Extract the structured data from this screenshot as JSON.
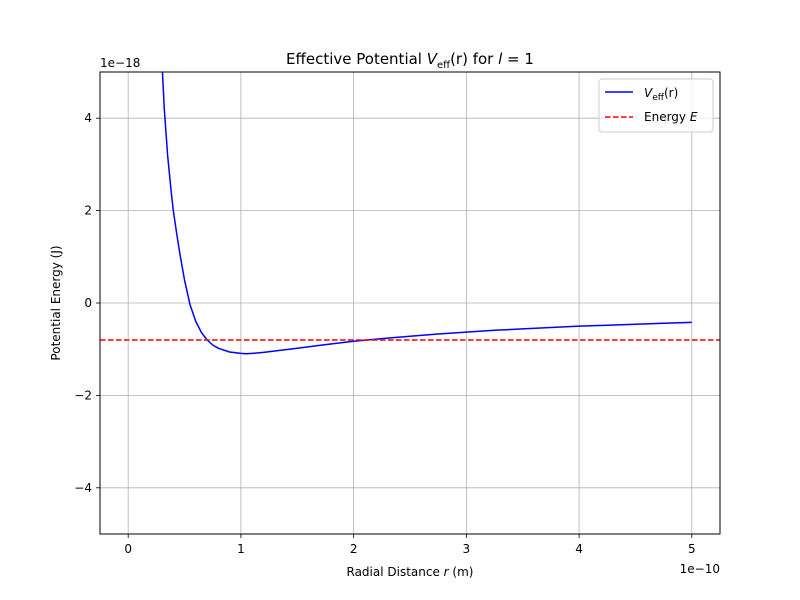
{
  "chart_data": {
    "type": "line",
    "title": "Effective Potential V_eff(r) for l = 1",
    "title_parts": {
      "pre": "Effective Potential ",
      "v": "V",
      "sub": "eff",
      "args": "(r)",
      "mid": " for ",
      "l": "l",
      "eq": " = 1"
    },
    "xlabel": "Radial Distance r (m)",
    "xlabel_parts": {
      "pre": "Radial Distance ",
      "var": "r",
      "post": " (m)"
    },
    "ylabel": "Potential Energy (J)",
    "x_scale_label": "1e−10",
    "y_scale_label": "1e−18",
    "xlim": [
      -0.25,
      5.25
    ],
    "ylim": [
      -5,
      5
    ],
    "x_ticks": [
      0,
      1,
      2,
      3,
      4,
      5
    ],
    "x_tick_labels": [
      "0",
      "1",
      "2",
      "3",
      "4",
      "5"
    ],
    "y_ticks": [
      -4,
      -2,
      0,
      2,
      4
    ],
    "y_tick_labels": [
      "−4",
      "−2",
      "0",
      "2",
      "4"
    ],
    "grid": true,
    "legend_position": "top-right",
    "series": [
      {
        "name": "V_eff(r)",
        "legend_parts": {
          "v": "V",
          "sub": "eff",
          "args": "(r)"
        },
        "color": "#0000ff",
        "style": "solid",
        "x": [
          0.3,
          0.32,
          0.35,
          0.38,
          0.4,
          0.43,
          0.46,
          0.5,
          0.55,
          0.6,
          0.65,
          0.7,
          0.75,
          0.8,
          0.9,
          1.0,
          1.05,
          1.1,
          1.2,
          1.3,
          1.5,
          1.75,
          2.0,
          2.25,
          2.5,
          2.75,
          3.0,
          3.25,
          3.5,
          3.75,
          4.0,
          4.25,
          4.5,
          4.75,
          5.0
        ],
        "y": [
          5.2,
          4.2,
          3.2,
          2.45,
          2.0,
          1.5,
          1.05,
          0.5,
          -0.05,
          -0.4,
          -0.64,
          -0.8,
          -0.91,
          -0.98,
          -1.06,
          -1.09,
          -1.1,
          -1.09,
          -1.07,
          -1.04,
          -0.98,
          -0.9,
          -0.83,
          -0.77,
          -0.72,
          -0.67,
          -0.63,
          -0.59,
          -0.56,
          -0.53,
          -0.5,
          -0.48,
          -0.46,
          -0.44,
          -0.42
        ]
      },
      {
        "name": "Energy E",
        "legend_parts": {
          "pre": "Energy ",
          "var": "E"
        },
        "color": "#ff0000",
        "style": "dashed",
        "x": [
          -0.25,
          5.25
        ],
        "y": [
          -0.8,
          -0.8
        ]
      }
    ]
  }
}
